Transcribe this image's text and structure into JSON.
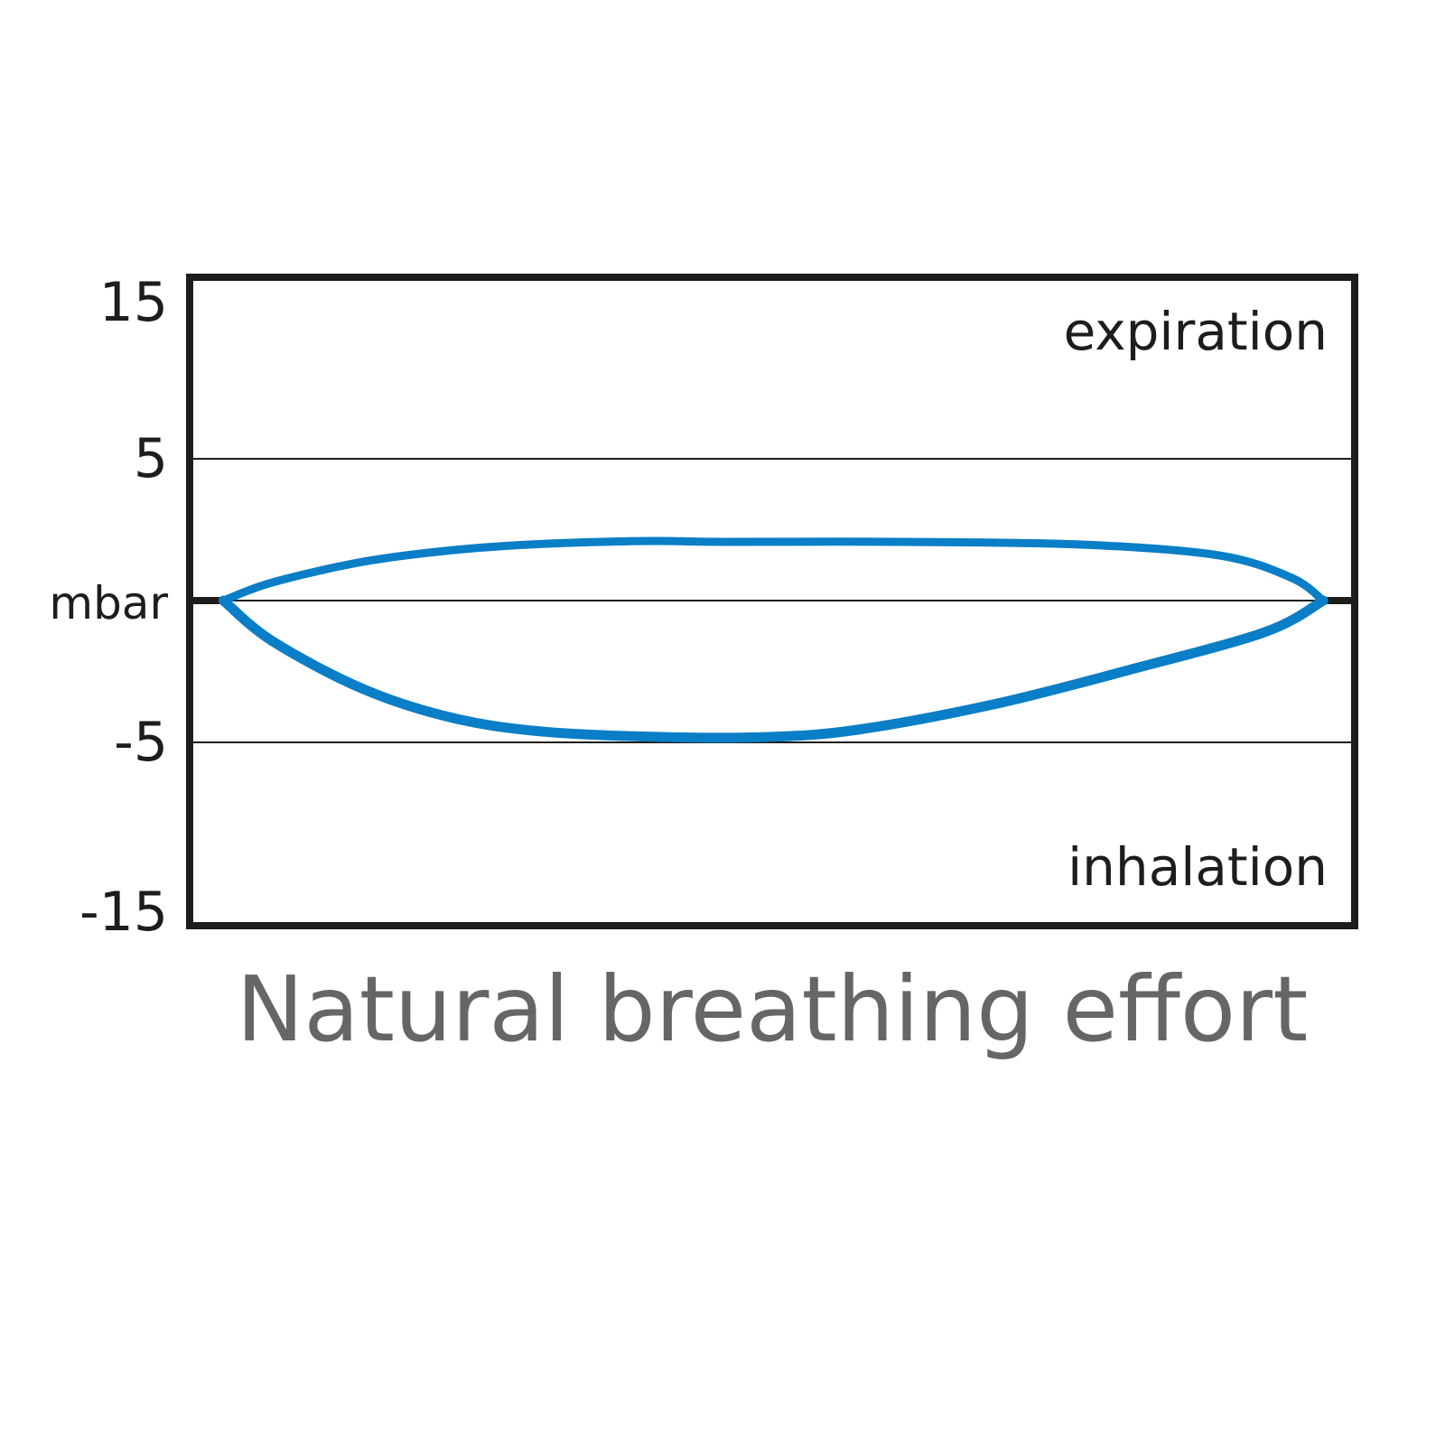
{
  "chart_data": {
    "type": "line",
    "title": "Natural breathing effort",
    "xlabel": "",
    "ylabel": "mbar",
    "ylim": [
      -11.5,
      11.5
    ],
    "xlim": [
      0,
      100
    ],
    "y_ticks": [
      {
        "value": 15,
        "label": "15"
      },
      {
        "value": 5,
        "label": "5"
      },
      {
        "value": 0,
        "label": "mbar"
      },
      {
        "value": -5,
        "label": "-5"
      },
      {
        "value": -15,
        "label": "-15"
      }
    ],
    "gridlines": [
      5,
      0,
      -5
    ],
    "annotations": {
      "top": "expiration",
      "bottom": "inhalation"
    },
    "colors": {
      "curve": "#0a7ec6",
      "axes": "#1d1d1b",
      "title": "#666666"
    },
    "series": [
      {
        "x": [
          2.9,
          7.1,
          14.9,
          22.6,
          30.3,
          39.6,
          45.8,
          61.3,
          76.8,
          88.4,
          94.6,
          97.3
        ],
        "y": [
          0,
          0.64,
          1.37,
          1.78,
          2.0,
          2.1,
          2.07,
          2.07,
          1.97,
          1.59,
          0.8,
          0
        ]
      },
      {
        "x": [
          2.9,
          7.1,
          14.9,
          22.6,
          30.3,
          40.4,
          49.7,
          57.4,
          69.0,
          80.6,
          92.3,
          97.3
        ],
        "y": [
          0,
          -1.43,
          -3.12,
          -4.14,
          -4.62,
          -4.81,
          -4.81,
          -4.55,
          -3.66,
          -2.45,
          -1.11,
          0
        ]
      }
    ]
  }
}
